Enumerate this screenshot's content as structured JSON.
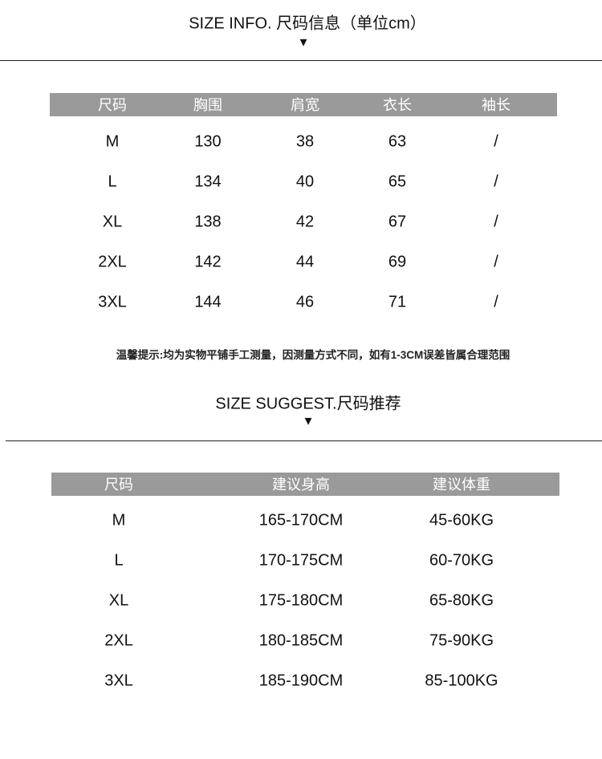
{
  "size_info": {
    "title": "SIZE INFO. 尺码信息（单位cm）",
    "arrow": "▼",
    "headers": [
      "尺码",
      "胸围",
      "肩宽",
      "衣长",
      "袖长"
    ],
    "rows": [
      [
        "M",
        "130",
        "38",
        "63",
        "/"
      ],
      [
        "L",
        "134",
        "40",
        "65",
        "/"
      ],
      [
        "XL",
        "138",
        "42",
        "67",
        "/"
      ],
      [
        "2XL",
        "142",
        "44",
        "69",
        "/"
      ],
      [
        "3XL",
        "144",
        "46",
        "71",
        "/"
      ]
    ],
    "note": "温馨提示:均为实物平铺手工测量，因测量方式不同，如有1-3CM误差皆属合理范围"
  },
  "size_suggest": {
    "title": "SIZE SUGGEST.尺码推荐",
    "arrow": "▼",
    "headers": [
      "尺码",
      "建议身高",
      "建议体重"
    ],
    "rows": [
      [
        "M",
        "165-170CM",
        "45-60KG"
      ],
      [
        "L",
        "170-175CM",
        "60-70KG"
      ],
      [
        "XL",
        "175-180CM",
        "65-80KG"
      ],
      [
        "2XL",
        "180-185CM",
        "75-90KG"
      ],
      [
        "3XL",
        "185-190CM",
        "85-100KG"
      ]
    ]
  },
  "colors": {
    "header_bar": "#9a9a9a",
    "text": "#111111"
  }
}
